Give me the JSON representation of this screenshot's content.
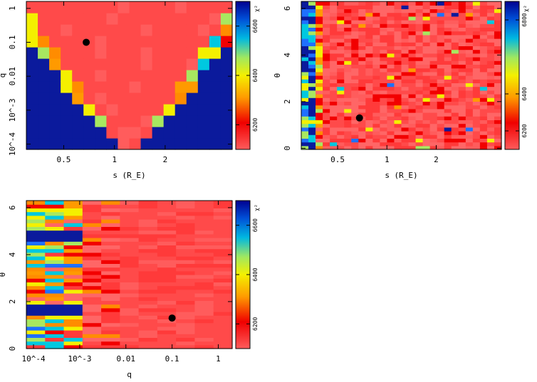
{
  "chart_data": [
    {
      "type": "heatmap",
      "panel": "top-left",
      "xlabel": "s (R_E)",
      "ylabel": "q",
      "xscale": "log",
      "yscale": "log",
      "xlim": [
        0.3,
        5.0
      ],
      "ylim": [
        7e-05,
        1.6
      ],
      "xticks": [
        {
          "value": 0.5,
          "label": "0.5"
        },
        {
          "value": 1,
          "label": "1"
        },
        {
          "value": 2,
          "label": "2"
        }
      ],
      "yticks": [
        {
          "value": 1,
          "label": "1"
        },
        {
          "value": 0.1,
          "label": "0.1"
        },
        {
          "value": 0.01,
          "label": "0.01"
        },
        {
          "value": 0.001,
          "label": "10^-3"
        },
        {
          "value": 0.0001,
          "label": "10^-4"
        }
      ],
      "nx": 18,
      "ny": 13,
      "best_fit": {
        "x": 0.68,
        "y": 0.1
      },
      "colorbar": {
        "label": "χ²",
        "min": 6100,
        "max": 6700,
        "ticks": [
          6600,
          6400,
          6200
        ]
      }
    },
    {
      "type": "heatmap",
      "panel": "top-right",
      "xlabel": "s (R_E)",
      "ylabel": "θ",
      "xscale": "log",
      "yscale": "linear",
      "xlim": [
        0.3,
        5.0
      ],
      "ylim": [
        -0.05,
        6.3
      ],
      "xticks": [
        {
          "value": 0.5,
          "label": "0.5"
        },
        {
          "value": 1,
          "label": "1"
        },
        {
          "value": 2,
          "label": "2"
        }
      ],
      "yticks": [
        {
          "value": 0,
          "label": "0"
        },
        {
          "value": 2,
          "label": "2"
        },
        {
          "value": 4,
          "label": "4"
        },
        {
          "value": 6,
          "label": "6"
        }
      ],
      "nx": 28,
      "ny": 40,
      "best_fit": {
        "x": 0.68,
        "y": 1.3
      },
      "colorbar": {
        "label": "χ²",
        "min": 6100,
        "max": 6900,
        "ticks": [
          6800,
          6400,
          6200
        ]
      }
    },
    {
      "type": "heatmap",
      "panel": "bottom-left",
      "xlabel": "q",
      "ylabel": "θ",
      "xscale": "log",
      "yscale": "linear",
      "xlim": [
        7e-05,
        2.0
      ],
      "ylim": [
        0,
        6.3
      ],
      "xticks": [
        {
          "value": 0.0001,
          "label": "10^-4"
        },
        {
          "value": 0.001,
          "label": "10^-3"
        },
        {
          "value": 0.01,
          "label": "0.01"
        },
        {
          "value": 0.1,
          "label": "0.1"
        },
        {
          "value": 1,
          "label": "1"
        }
      ],
      "yticks": [
        {
          "value": 0,
          "label": "0"
        },
        {
          "value": 2,
          "label": "2"
        },
        {
          "value": 4,
          "label": "4"
        },
        {
          "value": 6,
          "label": "6"
        }
      ],
      "nx": 11,
      "ny": 40,
      "best_fit": {
        "x": 0.1,
        "y": 1.3
      },
      "colorbar": {
        "label": "χ²",
        "min": 6100,
        "max": 6700,
        "ticks": [
          6600,
          6400,
          6200
        ]
      }
    }
  ]
}
